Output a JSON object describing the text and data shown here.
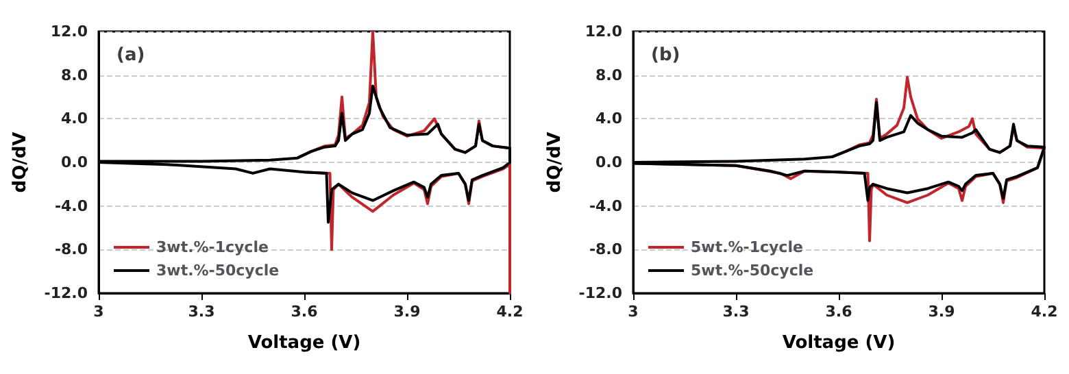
{
  "chart_data": [
    {
      "type": "line",
      "title": "(a)",
      "xlabel": "Voltage (V)",
      "ylabel": "dQ/dV",
      "xlim": [
        3,
        4.2
      ],
      "xticks": [
        3,
        3.3,
        3.6,
        3.9,
        4.2
      ],
      "ylim": [
        -12,
        12
      ],
      "yticks": [
        {
          "value": -12,
          "label": "-12.0"
        },
        {
          "value": -8,
          "label": "-8.0"
        },
        {
          "value": -4,
          "label": "-4.0"
        },
        {
          "value": 0,
          "label": "0.0"
        },
        {
          "value": 4,
          "label": "4.0"
        },
        {
          "value": 8,
          "label": "8.0"
        },
        {
          "value": 12,
          "label": "12.0"
        }
      ],
      "grid": "y",
      "legend": "bottom left",
      "series": [
        {
          "name": "3wt.%-1cycle",
          "color": "#c0272d",
          "x": [
            3.58,
            3.62,
            3.66,
            3.69,
            3.7,
            3.71,
            3.72,
            3.74,
            3.77,
            3.79,
            3.8,
            3.81,
            3.83,
            3.86,
            3.9,
            3.95,
            3.98,
            4.0,
            4.04,
            4.07,
            4.1,
            4.11,
            4.12,
            4.15,
            4.2,
            4.2,
            4.2,
            4.18,
            4.12,
            4.09,
            4.08,
            4.07,
            4.05,
            4.0,
            3.97,
            3.96,
            3.95,
            3.92,
            3.86,
            3.8,
            3.74,
            3.7,
            3.685,
            3.68,
            3.675,
            3.6
          ],
          "values": [
            0.4,
            1.0,
            1.5,
            1.6,
            2.5,
            6.0,
            2.2,
            2.6,
            3.4,
            5.5,
            12.0,
            6.0,
            4.2,
            3.0,
            2.4,
            2.9,
            4.0,
            2.6,
            1.2,
            0.9,
            1.5,
            3.8,
            2.0,
            1.5,
            1.3,
            -12.0,
            -0.2,
            -0.6,
            -1.3,
            -1.7,
            -3.8,
            -2.0,
            -1.0,
            -1.3,
            -2.2,
            -3.8,
            -2.5,
            -1.9,
            -3.0,
            -4.5,
            -3.2,
            -2.0,
            -2.5,
            -8.0,
            -1.0,
            -0.9
          ]
        },
        {
          "name": "3wt.%-50cycle",
          "color": "#000000",
          "x": [
            3.0,
            3.3,
            3.5,
            3.58,
            3.62,
            3.66,
            3.69,
            3.7,
            3.71,
            3.72,
            3.74,
            3.77,
            3.79,
            3.8,
            3.82,
            3.85,
            3.9,
            3.96,
            3.99,
            4.0,
            4.04,
            4.07,
            4.1,
            4.11,
            4.12,
            4.15,
            4.2,
            4.2,
            4.18,
            4.12,
            4.09,
            4.08,
            4.07,
            4.05,
            4.0,
            3.97,
            3.96,
            3.95,
            3.92,
            3.86,
            3.8,
            3.74,
            3.7,
            3.68,
            3.67,
            3.665,
            3.6,
            3.5,
            3.45,
            3.4,
            3.2,
            3.0
          ],
          "values": [
            0.1,
            0.1,
            0.2,
            0.4,
            1.0,
            1.4,
            1.5,
            2.0,
            4.5,
            2.0,
            2.6,
            3.0,
            4.5,
            7.0,
            5.0,
            3.2,
            2.5,
            2.6,
            3.5,
            2.6,
            1.2,
            0.9,
            1.5,
            3.5,
            2.0,
            1.5,
            1.3,
            0.0,
            -0.5,
            -1.2,
            -1.6,
            -3.5,
            -2.0,
            -1.0,
            -1.2,
            -2.0,
            -3.2,
            -2.3,
            -1.8,
            -2.6,
            -3.5,
            -2.8,
            -2.0,
            -2.5,
            -5.5,
            -1.0,
            -0.9,
            -0.6,
            -1.0,
            -0.6,
            -0.2,
            0.0
          ]
        }
      ]
    },
    {
      "type": "line",
      "title": "(b)",
      "xlabel": "Voltage (V)",
      "ylabel": "dQ/dV",
      "xlim": [
        3,
        4.2
      ],
      "xticks": [
        3,
        3.3,
        3.6,
        3.9,
        4.2
      ],
      "ylim": [
        -12,
        12
      ],
      "yticks": [
        {
          "value": -12,
          "label": "-12.0"
        },
        {
          "value": -8,
          "label": "-8.0"
        },
        {
          "value": -4,
          "label": "-4.0"
        },
        {
          "value": 0,
          "label": "0.0"
        },
        {
          "value": 4,
          "label": "4.0"
        },
        {
          "value": 8,
          "label": "8.0"
        },
        {
          "value": 12,
          "label": "12.0"
        }
      ],
      "grid": "y",
      "legend": "bottom left",
      "series": [
        {
          "name": "5wt.%-1cycle",
          "color": "#c0272d",
          "x": [
            3.58,
            3.62,
            3.66,
            3.69,
            3.7,
            3.71,
            3.72,
            3.74,
            3.77,
            3.79,
            3.8,
            3.81,
            3.83,
            3.86,
            3.9,
            3.95,
            3.98,
            3.99,
            4.0,
            4.04,
            4.07,
            4.1,
            4.11,
            4.12,
            4.15,
            4.2,
            4.18,
            4.12,
            4.09,
            4.08,
            4.07,
            4.05,
            4.0,
            3.97,
            3.96,
            3.95,
            3.92,
            3.86,
            3.8,
            3.74,
            3.7,
            3.695,
            3.69,
            3.685,
            3.6,
            3.5,
            3.46,
            3.43,
            3.3,
            3.0
          ],
          "values": [
            0.5,
            1.0,
            1.6,
            1.8,
            2.5,
            5.8,
            2.2,
            2.6,
            3.4,
            5.0,
            7.8,
            6.0,
            4.0,
            3.0,
            2.2,
            2.8,
            3.3,
            4.0,
            2.6,
            1.2,
            0.9,
            1.5,
            3.2,
            2.0,
            1.4,
            1.3,
            -0.5,
            -1.4,
            -1.7,
            -3.7,
            -2.0,
            -1.0,
            -1.3,
            -2.2,
            -3.5,
            -2.4,
            -1.9,
            -3.0,
            -3.7,
            -3.0,
            -2.0,
            -2.5,
            -7.2,
            -1.0,
            -0.9,
            -0.8,
            -1.5,
            -1.0,
            -0.3,
            -0.1
          ]
        },
        {
          "name": "5wt.%-50cycle",
          "color": "#000000",
          "x": [
            3.0,
            3.3,
            3.5,
            3.58,
            3.62,
            3.66,
            3.69,
            3.7,
            3.71,
            3.72,
            3.74,
            3.77,
            3.79,
            3.81,
            3.83,
            3.86,
            3.9,
            3.96,
            3.99,
            4.0,
            4.04,
            4.07,
            4.1,
            4.11,
            4.12,
            4.15,
            4.2,
            4.18,
            4.12,
            4.09,
            4.08,
            4.07,
            4.05,
            4.0,
            3.97,
            3.96,
            3.95,
            3.92,
            3.86,
            3.8,
            3.74,
            3.7,
            3.69,
            3.685,
            3.675,
            3.6,
            3.5,
            3.45,
            3.4,
            3.3,
            3.0
          ],
          "values": [
            0.0,
            0.1,
            0.3,
            0.5,
            1.0,
            1.5,
            1.7,
            2.0,
            5.5,
            2.0,
            2.3,
            2.6,
            2.8,
            4.3,
            3.6,
            3.0,
            2.4,
            2.3,
            2.7,
            3.0,
            1.2,
            0.9,
            1.5,
            3.5,
            2.0,
            1.5,
            1.4,
            -0.5,
            -1.3,
            -1.6,
            -3.3,
            -2.0,
            -1.0,
            -1.2,
            -2.0,
            -2.6,
            -2.2,
            -1.8,
            -2.4,
            -2.8,
            -2.4,
            -2.0,
            -2.3,
            -3.5,
            -1.0,
            -0.9,
            -0.8,
            -1.2,
            -0.8,
            -0.3,
            -0.1
          ]
        }
      ]
    }
  ]
}
